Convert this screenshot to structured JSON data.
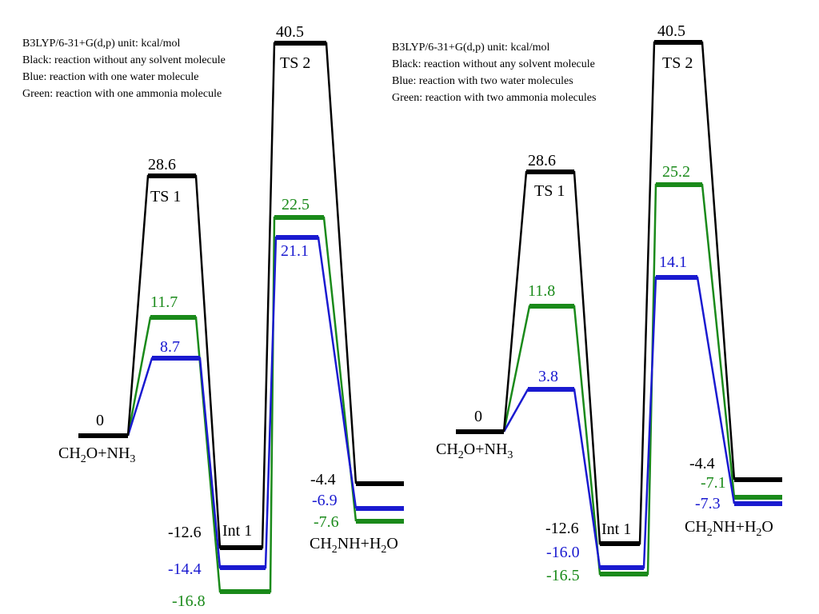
{
  "colors": {
    "black": "#000000",
    "blue": "#1a1ad0",
    "green": "#1a8a1a"
  },
  "panels": [
    {
      "legend": [
        "B3LYP/6-31+G(d,p)  unit: kcal/mol",
        "Black: reaction without any solvent molecule",
        "Blue: reaction with one water molecule",
        "Green: reaction with one ammonia molecule"
      ],
      "stage_labels": {
        "reactant": "CH2O+NH3",
        "ts1": "TS 1",
        "int1": "Int 1",
        "ts2": "TS 2",
        "product": "CH2NH+H2O"
      },
      "energies": {
        "black": {
          "reactant": "0",
          "ts1": "28.6",
          "int1": "-12.6",
          "ts2": "40.5",
          "product": "-4.4"
        },
        "blue": {
          "ts1": "8.7",
          "int1": "-14.4",
          "ts2": "21.1",
          "product": "-6.9"
        },
        "green": {
          "ts1": "11.7",
          "int1": "-16.8",
          "ts2": "22.5",
          "product": "-7.6"
        }
      }
    },
    {
      "legend": [
        "B3LYP/6-31+G(d,p)  unit: kcal/mol",
        "Black: reaction without any solvent molecule",
        "Blue: reaction with two water molecules",
        "Green: reaction with two ammonia molecules"
      ],
      "stage_labels": {
        "reactant": "CH2O+NH3",
        "ts1": "TS 1",
        "int1": "Int 1",
        "ts2": "TS 2",
        "product": "CH2NH+H2O"
      },
      "energies": {
        "black": {
          "reactant": "0",
          "ts1": "28.6",
          "int1": "-12.6",
          "ts2": "40.5",
          "product": "-4.4"
        },
        "blue": {
          "ts1": "3.8",
          "int1": "-16.0",
          "ts2": "14.1",
          "product": "-7.3"
        },
        "green": {
          "ts1": "11.8",
          "int1": "-16.5",
          "ts2": "25.2",
          "product": "-7.1"
        }
      }
    }
  ]
}
